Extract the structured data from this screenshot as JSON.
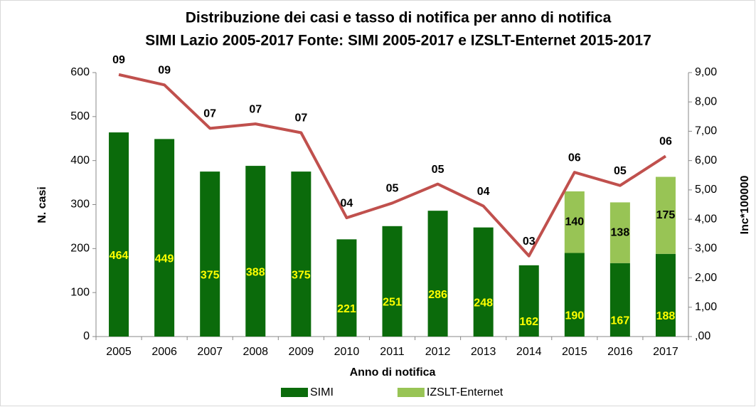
{
  "chart_data": {
    "type": "bar",
    "title": "Distribuzione dei casi e tasso di notifica per anno di notifica",
    "subtitle": "SIMI Lazio 2005-2017 Fonte: SIMI 2005-2017 e IZSLT-Enternet 2015-2017",
    "x_label": "Anno di notifica",
    "y_label": "N. casi",
    "y2_label": "Inc*100000",
    "categories": [
      "2005",
      "2006",
      "2007",
      "2008",
      "2009",
      "2010",
      "2011",
      "2012",
      "2013",
      "2014",
      "2015",
      "2016",
      "2017"
    ],
    "series": [
      {
        "name": "SIMI",
        "type": "bar",
        "color": "#0b6b0b",
        "label_color": "#ffff00",
        "values": [
          464,
          449,
          375,
          388,
          375,
          221,
          251,
          286,
          248,
          162,
          190,
          167,
          188
        ]
      },
      {
        "name": "IZSLT-Enternet",
        "type": "bar",
        "color": "#98c455",
        "label_color": "#000000",
        "values": [
          null,
          null,
          null,
          null,
          null,
          null,
          null,
          null,
          null,
          null,
          140,
          138,
          175
        ]
      },
      {
        "type": "line",
        "axis": "y2",
        "color": "#c0504d",
        "values": [
          8.93,
          8.58,
          7.1,
          7.25,
          6.95,
          4.05,
          4.55,
          5.2,
          4.45,
          2.75,
          5.6,
          5.15,
          6.15
        ],
        "value_labels": [
          "09",
          "09",
          "07",
          "07",
          "07",
          "04",
          "05",
          "05",
          "04",
          "03",
          "06",
          "05",
          "06"
        ]
      }
    ],
    "ylim": [
      0,
      600
    ],
    "yticks": [
      0,
      100,
      200,
      300,
      400,
      500,
      600
    ],
    "y2lim": [
      0,
      9
    ],
    "y2ticks": [
      {
        "value": 0,
        "label": ",00"
      },
      {
        "value": 1,
        "label": "1,00"
      },
      {
        "value": 2,
        "label": "2,00"
      },
      {
        "value": 3,
        "label": "3,00"
      },
      {
        "value": 4,
        "label": "4,00"
      },
      {
        "value": 5,
        "label": "5,00"
      },
      {
        "value": 6,
        "label": "6,00"
      },
      {
        "value": 7,
        "label": "7,00"
      },
      {
        "value": 8,
        "label": "8,00"
      },
      {
        "value": 9,
        "label": "9,00"
      }
    ],
    "grid": false,
    "legend": "bottom"
  }
}
